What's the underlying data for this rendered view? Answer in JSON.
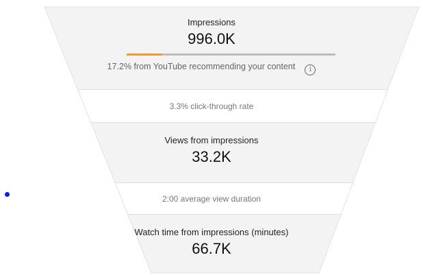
{
  "funnel": {
    "impressions": {
      "label": "Impressions",
      "value": "996.0K",
      "recommended_percent": 17.2,
      "recommended_text": "17.2% from YouTube recommending your content",
      "info_icon": "i"
    },
    "ctr_text": "3.3% click-through rate",
    "views": {
      "label": "Views from impressions",
      "value": "33.2K"
    },
    "avd_text": "2:00 average view duration",
    "watch_time": {
      "label": "Watch time from impressions (minutes)",
      "value": "66.7K"
    }
  },
  "colors": {
    "bar_fill": "#f39a2b",
    "bar_track": "#bdbdbd",
    "dot": "#0a1ef0"
  }
}
